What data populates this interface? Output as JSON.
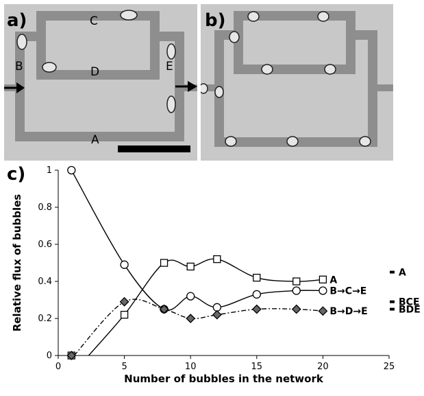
{
  "panels": {
    "a": {
      "label": "a)",
      "channel_labels": {
        "A": "A",
        "B": "B",
        "C": "C",
        "D": "D",
        "E": "E"
      }
    },
    "b": {
      "label": "b)"
    },
    "c": {
      "label": "c)"
    }
  },
  "colors": {
    "micrograph_bg": "#c8c8c8",
    "channel": "#8e8e8e",
    "bubble_fill": "#e6e6e6",
    "bubble_edge": "#222222",
    "scale_bar": "#000000",
    "series": "#000000"
  },
  "chart_data": {
    "type": "scatter",
    "xlabel": "Number of bubbles in the network",
    "ylabel": "Relative flux of bubbles",
    "xlim": [
      0,
      25
    ],
    "ylim": [
      0,
      1
    ],
    "xticks": [
      "0",
      "5",
      "10",
      "15",
      "20",
      "25"
    ],
    "yticks": [
      "0",
      "0.2",
      "0.4",
      "0.6",
      "0.8",
      "1"
    ],
    "grid": false,
    "series": [
      {
        "name": "A",
        "marker": "square",
        "line": "solid",
        "x": [
          1,
          5,
          8,
          10,
          12,
          15,
          18,
          20
        ],
        "y": [
          0,
          0.22,
          0.5,
          0.48,
          0.52,
          0.42,
          0.4,
          0.41
        ]
      },
      {
        "name": "B→C→E",
        "marker": "circle",
        "line": "solid",
        "x": [
          1,
          5,
          8,
          10,
          12,
          15,
          18,
          20
        ],
        "y": [
          1,
          0.49,
          0.25,
          0.32,
          0.26,
          0.33,
          0.35,
          0.35
        ]
      },
      {
        "name": "B→D→E",
        "marker": "diamond",
        "line": "dash-dot",
        "x": [
          1,
          5,
          8,
          10,
          12,
          15,
          18,
          20
        ],
        "y": [
          0,
          0.29,
          0.25,
          0.2,
          0.22,
          0.25,
          0.25,
          0.24
        ]
      }
    ],
    "right_markers": [
      {
        "label": "A",
        "y": 0.45
      },
      {
        "label": "BCE",
        "y": 0.29
      },
      {
        "label": "BDE",
        "y": 0.25
      }
    ]
  }
}
